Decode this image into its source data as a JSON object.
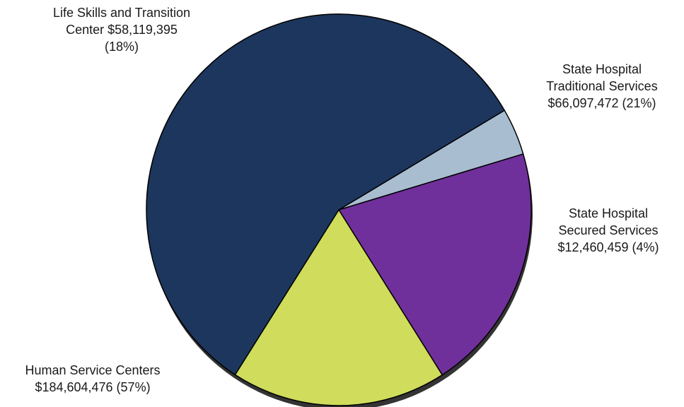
{
  "chart_data": {
    "type": "pie",
    "title": "",
    "slices": [
      {
        "name": "Human Service Centers",
        "amount": "$184,604,476",
        "percent": "(57%)",
        "value": 184604476,
        "color": "#1d365d"
      },
      {
        "name": "State Hospital Secured Services",
        "amount": "$12,460,459",
        "percent": "(4%)",
        "value": 12460459,
        "color": "#a9bdd1"
      },
      {
        "name": "State Hospital Traditional Services",
        "amount": "$66,097,472",
        "percent": "(21%)",
        "value": 66097472,
        "color": "#70309b"
      },
      {
        "name": "Life Skills and Transition Center",
        "amount": "$58,119,395",
        "percent": "(18%)",
        "value": 58119395,
        "color": "#cfdc5c"
      }
    ]
  },
  "labels": [
    {
      "lines": [
        "Human Service Centers",
        "$184,604,476 (57%)"
      ]
    },
    {
      "lines": [
        "State Hospital",
        "Secured Services",
        "$12,460,459 (4%)"
      ]
    },
    {
      "lines": [
        "State Hospital",
        "Traditional Services",
        "$66,097,472 (21%)"
      ]
    },
    {
      "lines": [
        "Life Skills and Transition",
        "Center  $58,119,395",
        "(18%)"
      ]
    }
  ]
}
